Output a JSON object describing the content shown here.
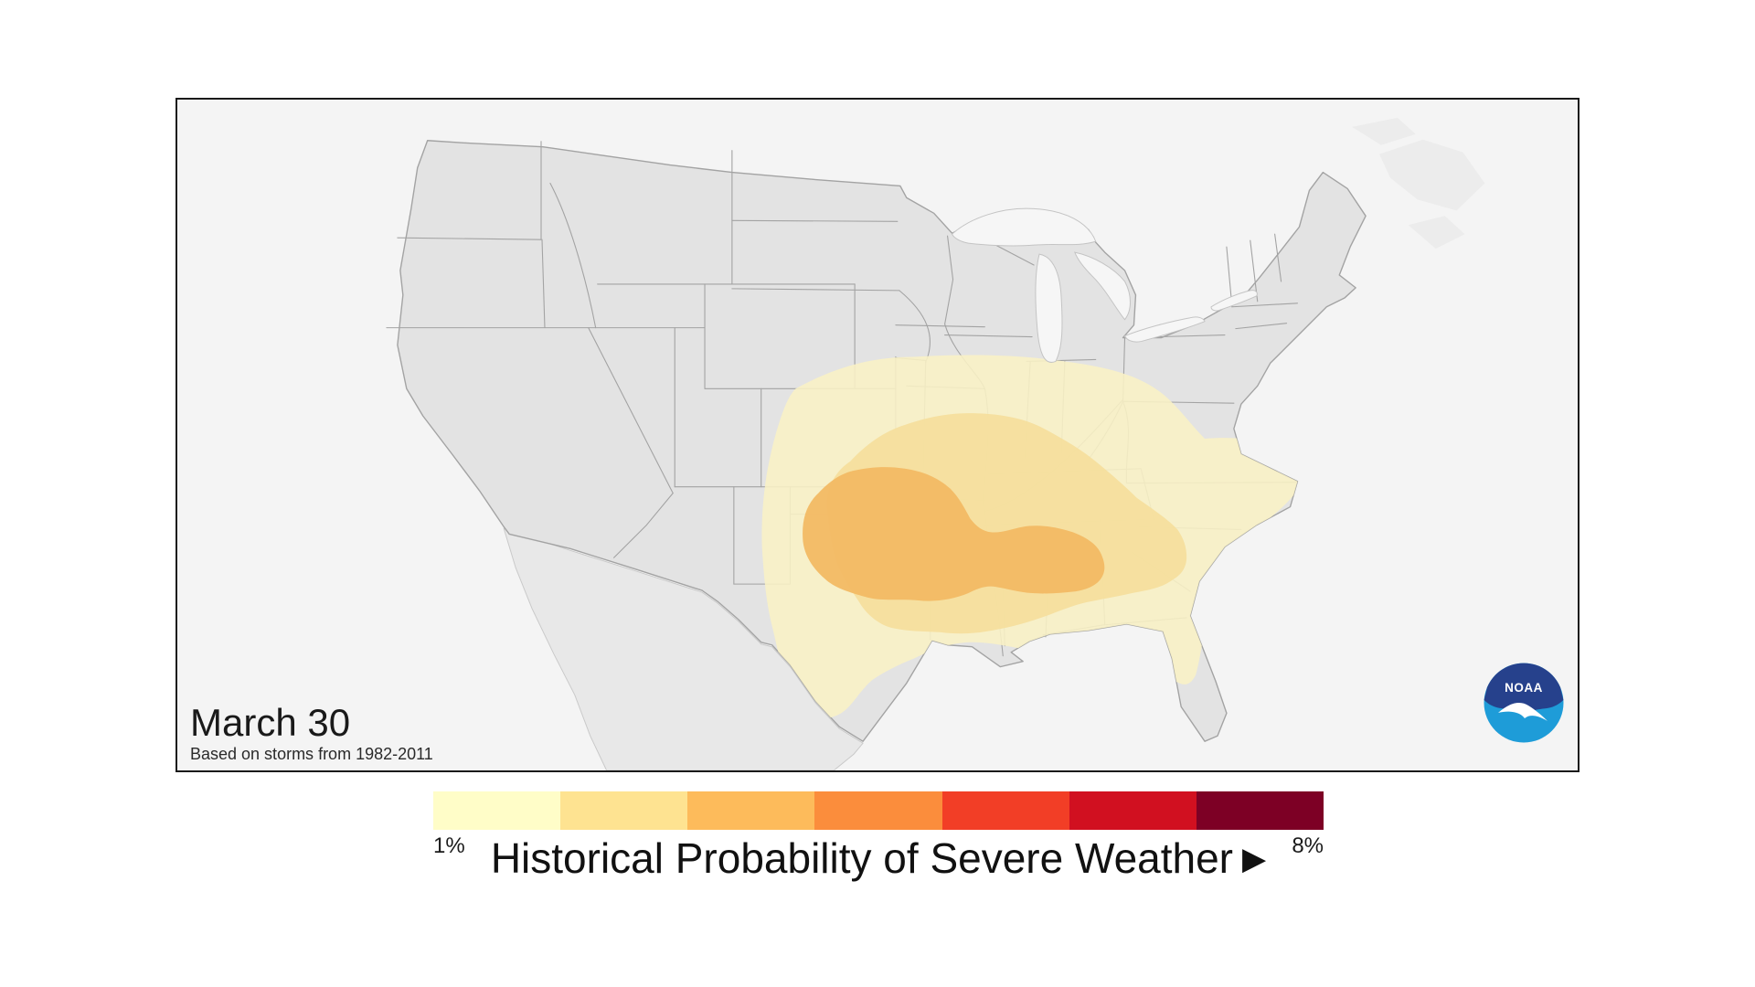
{
  "panel": {
    "date_label": "March 30",
    "subtitle": "Based on storms from 1982-2011"
  },
  "noaa": {
    "label": "NOAA",
    "circle_blue": "#1E9CD8",
    "fan_navy": "#26418C"
  },
  "legend": {
    "title": "Historical Probability of Severe Weather",
    "arrow": "▶",
    "min_label": "1%",
    "max_label": "8%",
    "colors": [
      "#FFFDC8",
      "#FEE391",
      "#FDBB5B",
      "#FB8D3C",
      "#F23E26",
      "#D11020",
      "#7D0025"
    ]
  },
  "map": {
    "type": "filled-contour probability map (contiguous United States)",
    "levels": [
      {
        "name": "outer-contour",
        "probability": "1%",
        "color": "#F9F1C5"
      },
      {
        "name": "middle-contour",
        "probability": "2%",
        "color": "#F5DE9C"
      },
      {
        "name": "inner-contour",
        "probability": "3-4%",
        "color": "#F2B964"
      }
    ],
    "regions_highlighted": "Southern Plains (Oklahoma/Kansas/Texas) and Lower Mississippi Valley (Mississippi/Alabama)",
    "land_fill": "#E3E3E3",
    "state_border": "#A3A3A3",
    "neighbor_fill": "#ECECEC",
    "mexico_fill": "#E8E8E8",
    "lake_fill": "#F6F6F6",
    "ocean_fill": "#F4F4F4"
  }
}
